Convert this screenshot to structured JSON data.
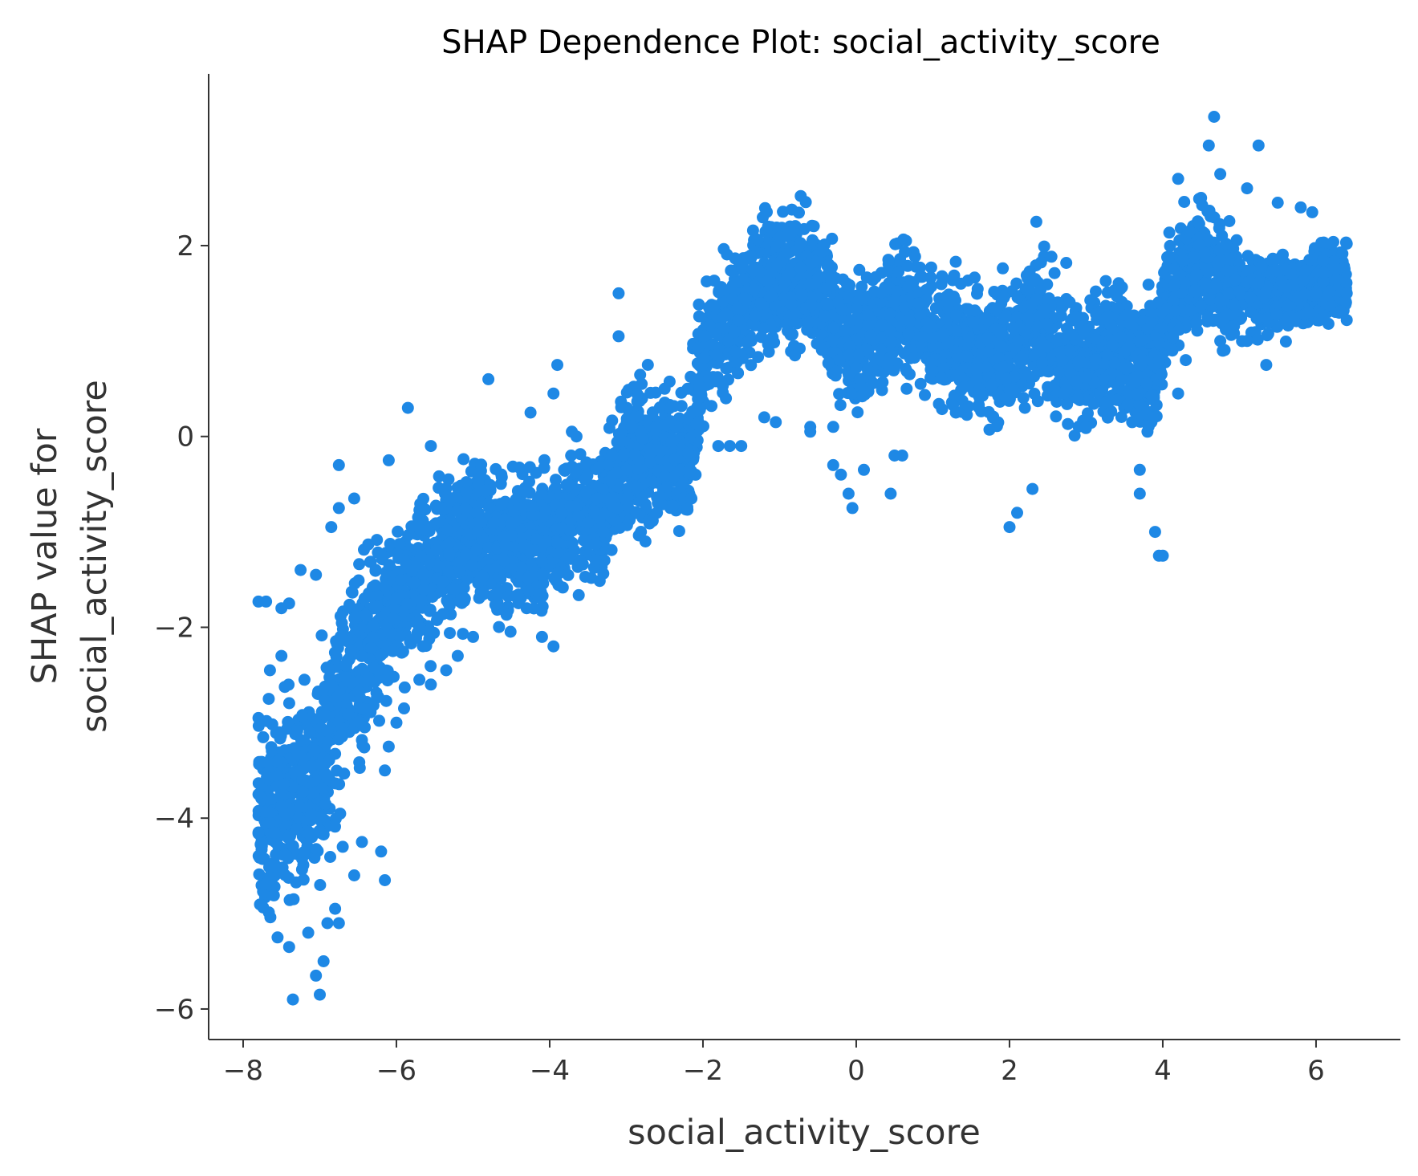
{
  "chart_data": {
    "type": "scatter",
    "title": "SHAP Dependence Plot: social_activity_score",
    "xlabel": "social_activity_score",
    "ylabel_lines": [
      "SHAP value for",
      "social_activity_score"
    ],
    "xlim": [
      -8.45,
      7.1
    ],
    "ylim": [
      -6.32,
      3.8
    ],
    "x_ticks": [
      -8,
      -6,
      -4,
      -2,
      0,
      2,
      4,
      6
    ],
    "x_tick_labels": [
      "−8",
      "−6",
      "−4",
      "−2",
      "0",
      "2",
      "4",
      "6"
    ],
    "y_ticks": [
      -6,
      -4,
      -2,
      0,
      2
    ],
    "y_tick_labels": [
      "−6",
      "−4",
      "−2",
      "0",
      "2"
    ],
    "grid": false,
    "point_color": "#1e88e5",
    "trend": [
      {
        "x": -7.8,
        "y": -3.9
      },
      {
        "x": -7.3,
        "y": -3.8
      },
      {
        "x": -7.0,
        "y": -3.6
      },
      {
        "x": -6.6,
        "y": -2.4
      },
      {
        "x": -6.2,
        "y": -2.0
      },
      {
        "x": -5.8,
        "y": -1.6
      },
      {
        "x": -5.4,
        "y": -1.3
      },
      {
        "x": -5.0,
        "y": -1.05
      },
      {
        "x": -4.6,
        "y": -1.1
      },
      {
        "x": -4.2,
        "y": -1.1
      },
      {
        "x": -3.8,
        "y": -0.9
      },
      {
        "x": -3.3,
        "y": -0.8
      },
      {
        "x": -3.0,
        "y": -0.2
      },
      {
        "x": -2.6,
        "y": -0.2
      },
      {
        "x": -2.2,
        "y": -0.2
      },
      {
        "x": -1.95,
        "y": 0.95
      },
      {
        "x": -1.6,
        "y": 1.3
      },
      {
        "x": -1.2,
        "y": 1.6
      },
      {
        "x": -0.8,
        "y": 1.65
      },
      {
        "x": -0.4,
        "y": 1.5
      },
      {
        "x": -0.2,
        "y": 1.0
      },
      {
        "x": 0.2,
        "y": 1.1
      },
      {
        "x": 0.6,
        "y": 1.4
      },
      {
        "x": 1.0,
        "y": 1.05
      },
      {
        "x": 1.5,
        "y": 0.9
      },
      {
        "x": 2.0,
        "y": 0.85
      },
      {
        "x": 2.3,
        "y": 1.2
      },
      {
        "x": 2.8,
        "y": 0.8
      },
      {
        "x": 3.3,
        "y": 0.9
      },
      {
        "x": 3.9,
        "y": 0.7
      },
      {
        "x": 4.1,
        "y": 1.6
      },
      {
        "x": 4.6,
        "y": 1.8
      },
      {
        "x": 5.0,
        "y": 1.5
      },
      {
        "x": 5.5,
        "y": 1.5
      },
      {
        "x": 6.4,
        "y": 1.6
      }
    ],
    "points": [
      {
        "x": 4.67,
        "y": 3.35
      },
      {
        "x": 4.6,
        "y": 3.05
      },
      {
        "x": 5.25,
        "y": 3.05
      },
      {
        "x": 4.75,
        "y": 2.75
      },
      {
        "x": 5.1,
        "y": 2.6
      },
      {
        "x": -1.15,
        "y": 2.2
      },
      {
        "x": -0.9,
        "y": 2.1
      },
      {
        "x": 2.35,
        "y": 2.25
      },
      {
        "x": 0.65,
        "y": 2.05
      },
      {
        "x": 5.8,
        "y": 2.4
      },
      {
        "x": 5.95,
        "y": 2.35
      },
      {
        "x": 6.4,
        "y": 2.02
      },
      {
        "x": 6.2,
        "y": 2.02
      },
      {
        "x": 6.4,
        "y": 1.5
      },
      {
        "x": 6.4,
        "y": 1.22
      },
      {
        "x": 5.9,
        "y": 1.3
      },
      {
        "x": 6.1,
        "y": 1.25
      },
      {
        "x": -3.1,
        "y": 1.5
      },
      {
        "x": -3.1,
        "y": 1.05
      },
      {
        "x": 5.1,
        "y": 1.0
      },
      {
        "x": -1.7,
        "y": 0.4
      },
      {
        "x": -1.2,
        "y": 0.2
      },
      {
        "x": -1.05,
        "y": 0.15
      },
      {
        "x": -0.6,
        "y": 0.1
      },
      {
        "x": -0.3,
        "y": 0.1
      },
      {
        "x": -1.5,
        "y": -0.1
      },
      {
        "x": -1.8,
        "y": -0.1
      },
      {
        "x": -0.3,
        "y": -0.3
      },
      {
        "x": -0.2,
        "y": -0.4
      },
      {
        "x": -0.1,
        "y": -0.6
      },
      {
        "x": -0.05,
        "y": -0.75
      },
      {
        "x": 0.1,
        "y": -0.35
      },
      {
        "x": 0.45,
        "y": -0.6
      },
      {
        "x": 0.5,
        "y": -0.2
      },
      {
        "x": 0.6,
        "y": -0.2
      },
      {
        "x": 2.0,
        "y": -0.95
      },
      {
        "x": 2.1,
        "y": -0.8
      },
      {
        "x": 2.3,
        "y": -0.55
      },
      {
        "x": 2.2,
        "y": 0.3
      },
      {
        "x": 1.3,
        "y": 0.25
      },
      {
        "x": 3.7,
        "y": -0.35
      },
      {
        "x": 3.7,
        "y": -0.6
      },
      {
        "x": 3.9,
        "y": -1.0
      },
      {
        "x": 3.95,
        "y": -1.25
      },
      {
        "x": 4.0,
        "y": -1.25
      },
      {
        "x": -2.75,
        "y": -1.1
      },
      {
        "x": -2.6,
        "y": -0.8
      },
      {
        "x": -2.15,
        "y": -0.65
      },
      {
        "x": -2.2,
        "y": 0.5
      },
      {
        "x": -2.5,
        "y": 0.5
      },
      {
        "x": -2.8,
        "y": 0.55
      },
      {
        "x": -3.3,
        "y": -1.0
      },
      {
        "x": -3.4,
        "y": -1.3
      },
      {
        "x": -3.6,
        "y": -1.3
      },
      {
        "x": -3.95,
        "y": -2.2
      },
      {
        "x": -4.1,
        "y": -2.1
      },
      {
        "x": -4.3,
        "y": -1.8
      },
      {
        "x": -4.6,
        "y": -1.3
      },
      {
        "x": -5.0,
        "y": -2.1
      },
      {
        "x": -5.2,
        "y": -2.3
      },
      {
        "x": -5.35,
        "y": -2.45
      },
      {
        "x": -5.55,
        "y": -2.6
      },
      {
        "x": -5.7,
        "y": -2.55
      },
      {
        "x": -5.9,
        "y": -2.85
      },
      {
        "x": -6.0,
        "y": -3.0
      },
      {
        "x": -6.1,
        "y": -3.25
      },
      {
        "x": -6.15,
        "y": -3.5
      },
      {
        "x": -6.2,
        "y": -4.35
      },
      {
        "x": -6.15,
        "y": -4.65
      },
      {
        "x": -6.45,
        "y": -4.25
      },
      {
        "x": -6.55,
        "y": -4.6
      },
      {
        "x": -6.7,
        "y": -4.3
      },
      {
        "x": -6.75,
        "y": -5.1
      },
      {
        "x": -6.8,
        "y": -4.95
      },
      {
        "x": -6.9,
        "y": -5.1
      },
      {
        "x": -6.95,
        "y": -5.5
      },
      {
        "x": -7.05,
        "y": -5.65
      },
      {
        "x": -7.0,
        "y": -5.85
      },
      {
        "x": -7.15,
        "y": -5.2
      },
      {
        "x": -7.35,
        "y": -5.9
      },
      {
        "x": -7.4,
        "y": -5.35
      },
      {
        "x": -7.55,
        "y": -5.25
      },
      {
        "x": -7.6,
        "y": -4.5
      },
      {
        "x": -7.65,
        "y": -4.05
      },
      {
        "x": -7.8,
        "y": -4.15
      },
      {
        "x": -7.8,
        "y": -3.75
      },
      {
        "x": -7.8,
        "y": -2.95
      },
      {
        "x": -7.8,
        "y": -1.73
      },
      {
        "x": -7.7,
        "y": -1.73
      },
      {
        "x": -7.5,
        "y": -1.8
      },
      {
        "x": -7.4,
        "y": -1.75
      },
      {
        "x": -7.25,
        "y": -1.4
      },
      {
        "x": -7.05,
        "y": -1.45
      },
      {
        "x": -7.5,
        "y": -2.3
      },
      {
        "x": -7.65,
        "y": -2.45
      },
      {
        "x": -7.2,
        "y": -2.55
      },
      {
        "x": -6.85,
        "y": -0.95
      },
      {
        "x": -6.75,
        "y": -0.75
      },
      {
        "x": -6.55,
        "y": -0.65
      },
      {
        "x": -6.75,
        "y": -0.3
      },
      {
        "x": -6.1,
        "y": -0.25
      },
      {
        "x": -5.85,
        "y": 0.3
      },
      {
        "x": -5.55,
        "y": -0.1
      },
      {
        "x": -4.8,
        "y": 0.6
      },
      {
        "x": -4.25,
        "y": 0.25
      },
      {
        "x": -3.9,
        "y": 0.75
      },
      {
        "x": -3.95,
        "y": 0.45
      },
      {
        "x": -3.65,
        "y": 0.0
      },
      {
        "x": -1.65,
        "y": -0.1
      },
      {
        "x": -0.8,
        "y": 0.85
      },
      {
        "x": -0.6,
        "y": 0.05
      },
      {
        "x": 0.15,
        "y": 0.7
      },
      {
        "x": 4.2,
        "y": 0.45
      },
      {
        "x": 3.6,
        "y": 0.15
      },
      {
        "x": 3.8,
        "y": 0.05
      },
      {
        "x": 4.3,
        "y": 0.8
      },
      {
        "x": 4.75,
        "y": 1.0
      },
      {
        "x": 5.35,
        "y": 0.75
      },
      {
        "x": 6.0,
        "y": 1.5
      },
      {
        "x": 5.6,
        "y": 1.75
      },
      {
        "x": 4.2,
        "y": 2.7
      },
      {
        "x": 4.5,
        "y": 2.5
      },
      {
        "x": 5.5,
        "y": 2.45
      }
    ]
  }
}
